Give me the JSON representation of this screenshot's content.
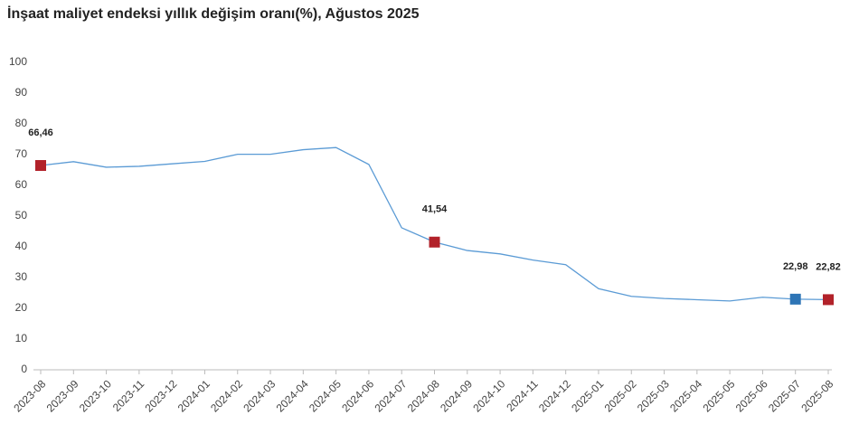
{
  "chart_data": {
    "type": "line",
    "title": "İnşaat maliyet endeksi yıllık değişim oranı(%), Ağustos 2025",
    "categories": [
      "2023-08",
      "2023-09",
      "2023-10",
      "2023-11",
      "2023-12",
      "2024-01",
      "2024-02",
      "2024-03",
      "2024-04",
      "2024-05",
      "2024-06",
      "2024-07",
      "2024-08",
      "2024-09",
      "2024-10",
      "2024-11",
      "2024-12",
      "2025-01",
      "2025-02",
      "2025-03",
      "2025-04",
      "2025-05",
      "2025-06",
      "2025-07",
      "2025-08"
    ],
    "series": [
      {
        "color": "#5b9bd5",
        "values": [
          66.46,
          67.7,
          65.9,
          66.2,
          67.0,
          67.8,
          70.1,
          70.1,
          71.6,
          72.3,
          66.8,
          46.2,
          41.54,
          38.8,
          37.7,
          35.7,
          34.2,
          26.4,
          23.9,
          23.2,
          22.8,
          22.4,
          23.6,
          22.98,
          22.82
        ],
        "value_labels": [
          "66,46",
          null,
          null,
          null,
          null,
          null,
          null,
          null,
          null,
          null,
          null,
          null,
          "41,54",
          null,
          null,
          null,
          null,
          null,
          null,
          null,
          null,
          null,
          null,
          "22,98",
          "22,82"
        ],
        "point_colors": [
          "#b2222a",
          null,
          null,
          null,
          null,
          null,
          null,
          null,
          null,
          null,
          null,
          null,
          "#b2222a",
          null,
          null,
          null,
          null,
          null,
          null,
          null,
          null,
          null,
          null,
          "#2e75b6",
          "#b2222a"
        ]
      }
    ],
    "ylim": [
      0,
      100
    ],
    "yticks": [
      0,
      10,
      20,
      30,
      40,
      50,
      60,
      70,
      80,
      90,
      100
    ]
  }
}
